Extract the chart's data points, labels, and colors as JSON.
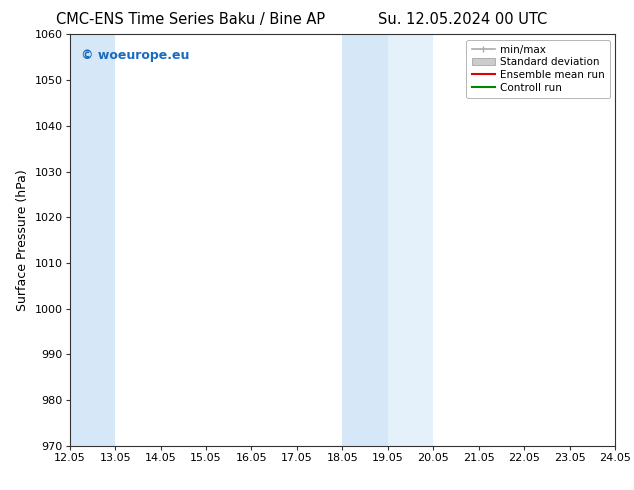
{
  "title_left": "CMC-ENS Time Series Baku / Bine AP",
  "title_right": "Su. 12.05.2024 00 UTC",
  "ylabel": "Surface Pressure (hPa)",
  "xlabel": "",
  "ylim": [
    970,
    1060
  ],
  "yticks": [
    970,
    980,
    990,
    1000,
    1010,
    1020,
    1030,
    1040,
    1050,
    1060
  ],
  "xlim_start": 12.05,
  "xlim_end": 24.05,
  "xticks": [
    12.05,
    13.05,
    14.05,
    15.05,
    16.05,
    17.05,
    18.05,
    19.05,
    20.05,
    21.05,
    22.05,
    23.05,
    24.05
  ],
  "xtick_labels": [
    "12.05",
    "13.05",
    "14.05",
    "15.05",
    "16.05",
    "17.05",
    "18.05",
    "19.05",
    "20.05",
    "21.05",
    "22.05",
    "23.05",
    "24.05"
  ],
  "shaded_regions": [
    {
      "x_start": 12.05,
      "x_end": 13.05,
      "color": "#d6e8f7"
    },
    {
      "x_start": 18.05,
      "x_end": 19.05,
      "color": "#d6e8f7"
    },
    {
      "x_start": 19.05,
      "x_end": 20.05,
      "color": "#e4f0fa"
    }
  ],
  "watermark_text": "© woeurope.eu",
  "watermark_color": "#1a6bbf",
  "bg_color": "#ffffff",
  "plot_bg_color": "#ffffff",
  "legend_items": [
    {
      "label": "min/max",
      "color": "#aaaaaa",
      "lw": 1.2
    },
    {
      "label": "Standard deviation",
      "color": "#cccccc",
      "lw": 6
    },
    {
      "label": "Ensemble mean run",
      "color": "#dd0000",
      "lw": 1.5
    },
    {
      "label": "Controll run",
      "color": "#008800",
      "lw": 1.5
    }
  ],
  "title_fontsize": 10.5,
  "ylabel_fontsize": 9,
  "tick_fontsize": 8,
  "watermark_fontsize": 9,
  "legend_fontsize": 7.5
}
